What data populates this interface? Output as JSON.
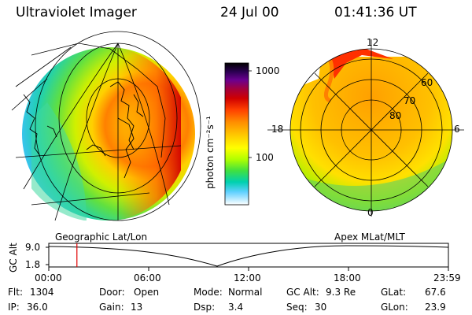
{
  "header": {
    "title": "Ultraviolet Imager",
    "date": "24 Jul 00",
    "time": "01:41:36 UT"
  },
  "colorbar": {
    "label": "photon cm⁻²s⁻¹",
    "ticks": [
      "1000",
      "100"
    ],
    "colors": [
      "#000000",
      "#1a0030",
      "#3a0060",
      "#6a0090",
      "#a00050",
      "#d00000",
      "#ff3000",
      "#ff7000",
      "#ffa000",
      "#ffd000",
      "#ffff00",
      "#a0ff00",
      "#40e040",
      "#00d0b0",
      "#60d0ff",
      "#c0e8ff",
      "#ffffff"
    ]
  },
  "left_panel": {
    "caption": "Geographic Lat/Lon"
  },
  "right_panel": {
    "caption": "Apex MLat/MLT",
    "mlt_labels": {
      "top": "12",
      "left": "18",
      "right": "6",
      "bottom": "0"
    },
    "lat_labels": [
      "60",
      "70",
      "80"
    ]
  },
  "altitude_plot": {
    "ylabel": "GC Alt",
    "yticks": [
      "9.0",
      "1.8"
    ],
    "xticks": [
      "00:00",
      "06:00",
      "12:00",
      "18:00",
      "23:59"
    ],
    "marker_time_hours": 1.69
  },
  "info": {
    "flt_label": "Flt:",
    "flt_value": "1304",
    "ip_label": "IP:",
    "ip_value": "36.0",
    "door_label": "Door:",
    "door_value": "Open",
    "gain_label": "Gain:",
    "gain_value": "13",
    "mode_label": "Mode:",
    "mode_value": "Normal",
    "dsp_label": "Dsp:",
    "dsp_value": "3.4",
    "gcalt_label": "GC Alt:",
    "gcalt_value": "9.3 Re",
    "seq_label": "Seq:",
    "seq_value": "30",
    "glat_label": "GLat:",
    "glat_value": "67.6",
    "glon_label": "GLon:",
    "glon_value": "23.9"
  }
}
